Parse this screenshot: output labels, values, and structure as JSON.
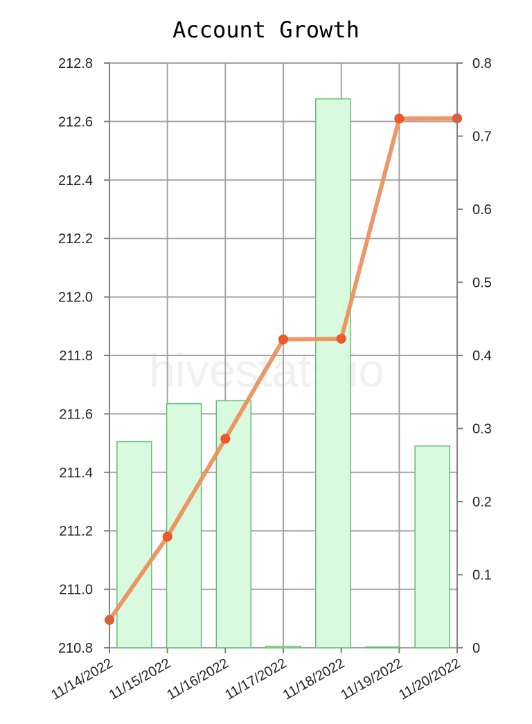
{
  "chart_data": {
    "type": "bar",
    "title": "Account Growth",
    "watermark": "hivestats.io",
    "categories": [
      "11/14/2022",
      "11/15/2022",
      "11/16/2022",
      "11/17/2022",
      "11/18/2022",
      "11/19/2022",
      "11/20/2022"
    ],
    "series": [
      {
        "chart": "line",
        "axis": "left",
        "values": [
          210.895,
          211.18,
          211.515,
          211.855,
          211.857,
          212.61,
          212.611
        ],
        "color": "#ec915c",
        "point_color": "#f05a2a"
      },
      {
        "chart": "bar",
        "axis": "right",
        "values": [
          0.282,
          0.334,
          0.338,
          0.002,
          0.751,
          0.001,
          0.276
        ],
        "color": "#d9fade",
        "edge_color": "#5fbf73"
      }
    ],
    "y_left": {
      "ylim": [
        210.8,
        212.8
      ],
      "ticks": [
        "210.8",
        "211.0",
        "211.2",
        "211.4",
        "211.6",
        "211.8",
        "212.0",
        "212.2",
        "212.4",
        "212.6",
        "212.8"
      ]
    },
    "y_right": {
      "ylim": [
        0,
        0.8
      ],
      "ticks": [
        "0",
        "0.1",
        "0.2",
        "0.3",
        "0.4",
        "0.5",
        "0.6",
        "0.7",
        "0.8"
      ]
    },
    "grid": true,
    "legend": "none"
  }
}
